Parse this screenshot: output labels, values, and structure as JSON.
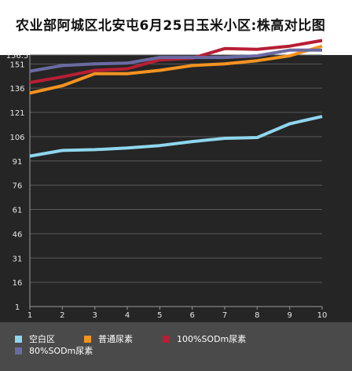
{
  "title": "农业部阿城区北安屯6月25日玉米小区:株高对比图",
  "chart_data": {
    "type": "line",
    "title": "农业部阿城区北安屯6月25日玉米小区:株高对比图",
    "xlabel": "",
    "ylabel": "",
    "x": [
      1,
      2,
      3,
      4,
      5,
      6,
      7,
      8,
      9,
      10
    ],
    "ylim": [
      1,
      156.5
    ],
    "y_ticks": [
      1,
      16,
      31,
      46,
      61,
      76,
      91,
      106,
      121,
      136,
      151,
      156.5
    ],
    "grid": true,
    "legend_position": "bottom",
    "series": [
      {
        "name": "空白区",
        "color": "#8fd6ee",
        "values": [
          94,
          97.5,
          98,
          99,
          100.5,
          103,
          105,
          105.5,
          114,
          118.5
        ]
      },
      {
        "name": "普通尿素",
        "color": "#f39320",
        "values": [
          133,
          137.5,
          145,
          145,
          147,
          150,
          151,
          153,
          156,
          162
        ]
      },
      {
        "name": "100%SODm尿素",
        "color": "#b81e34",
        "values": [
          139.5,
          143,
          147,
          148,
          153.5,
          154.5,
          160.5,
          160,
          162,
          165.5
        ]
      },
      {
        "name": "80%SODm尿素",
        "color": "#6b6aa3",
        "values": [
          146.5,
          150,
          151,
          151.5,
          155,
          155,
          155,
          156,
          159.5,
          159.5
        ]
      }
    ]
  }
}
